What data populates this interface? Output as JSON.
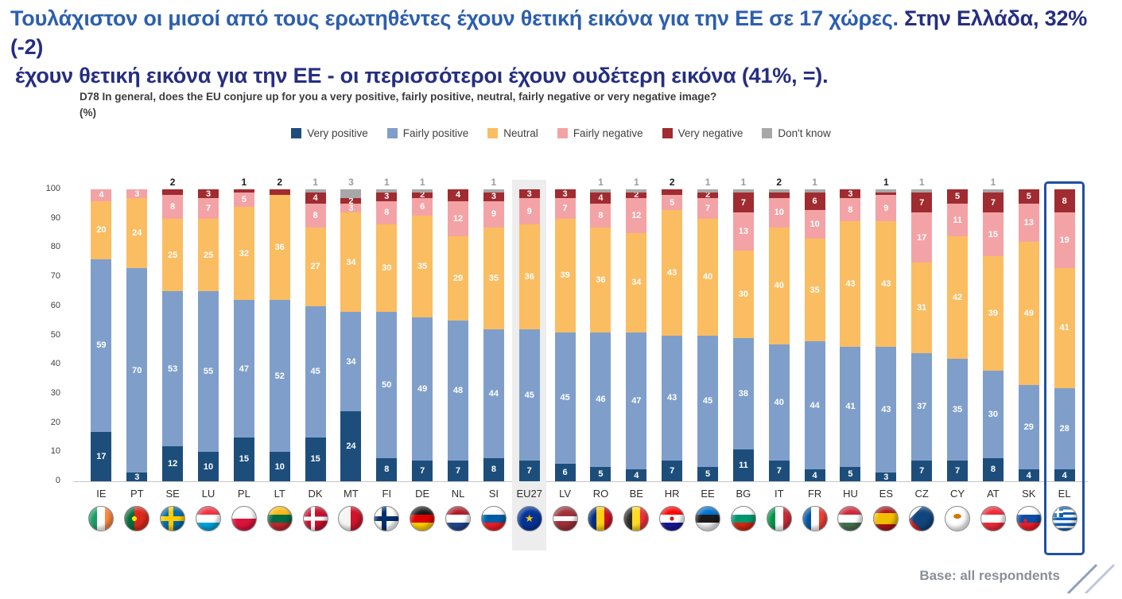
{
  "title": {
    "line1_part1": "Τουλάχιστον οι μισοί από τους ερωτηθέντες έχουν θετική εικόνα για την ΕΕ σε 17 χώρες. ",
    "line1_part2": "Στην Ελλάδα, 32% (-2)",
    "line2": "έχουν θετική εικόνα για την ΕΕ - οι περισσότεροι έχουν ουδέτερη εικόνα (41%, =)."
  },
  "question": {
    "text": "D78 In general, does the EU conjure up for you a very positive, fairly positive, neutral, fairly negative or very negative image?",
    "unit": "(%)"
  },
  "footer": {
    "base_note": "Base: all respondents"
  },
  "chart_data": {
    "type": "bar",
    "stacked": true,
    "ylim": [
      0,
      100
    ],
    "yticks": [
      0,
      10,
      20,
      30,
      40,
      50,
      60,
      70,
      80,
      90,
      100
    ],
    "grid": false,
    "legend_position": "top",
    "label_min_value": 2,
    "highlight_band_code": "EU27",
    "highlight_box_code": "EL",
    "legend": [
      {
        "key": "vp",
        "label": "Very positive",
        "color": "#1d4e7b"
      },
      {
        "key": "fp",
        "label": "Fairly positive",
        "color": "#7f9fca"
      },
      {
        "key": "n",
        "label": "Neutral",
        "color": "#fbbd62"
      },
      {
        "key": "fn",
        "label": "Fairly negative",
        "color": "#f3a3a6"
      },
      {
        "key": "vn",
        "label": "Very negative",
        "color": "#a02b30"
      },
      {
        "key": "dk",
        "label": "Don't know",
        "color": "#a8a8a8"
      }
    ],
    "countries": [
      {
        "code": "IE",
        "vp": 17,
        "fp": 59,
        "n": 20,
        "fn": 4,
        "vn": 0,
        "dk": 0,
        "above": null
      },
      {
        "code": "PT",
        "vp": 3,
        "fp": 70,
        "n": 24,
        "fn": 3,
        "vn": 0,
        "dk": 0,
        "above": null
      },
      {
        "code": "SE",
        "vp": 12,
        "fp": 53,
        "n": 25,
        "fn": 8,
        "vn": 2,
        "dk": 0,
        "above": {
          "series": "vn",
          "value": 2
        }
      },
      {
        "code": "LU",
        "vp": 10,
        "fp": 55,
        "n": 25,
        "fn": 7,
        "vn": 3,
        "dk": 0,
        "above": null
      },
      {
        "code": "PL",
        "vp": 15,
        "fp": 47,
        "n": 32,
        "fn": 5,
        "vn": 1,
        "dk": 0,
        "above": {
          "series": "vn",
          "value": 1
        }
      },
      {
        "code": "LT",
        "vp": 10,
        "fp": 52,
        "n": 36,
        "fn": 0,
        "vn": 2,
        "dk": 0,
        "above": {
          "series": "vn",
          "value": 2
        }
      },
      {
        "code": "DK",
        "vp": 15,
        "fp": 45,
        "n": 27,
        "fn": 8,
        "vn": 4,
        "dk": 1,
        "above": {
          "series": "dk",
          "value": 1
        }
      },
      {
        "code": "MT",
        "vp": 24,
        "fp": 34,
        "n": 34,
        "fn": 3,
        "vn": 2,
        "dk": 3,
        "above": {
          "series": "dk",
          "value": 3
        }
      },
      {
        "code": "FI",
        "vp": 8,
        "fp": 50,
        "n": 30,
        "fn": 8,
        "vn": 3,
        "dk": 1,
        "above": {
          "series": "dk",
          "value": 1
        }
      },
      {
        "code": "DE",
        "vp": 7,
        "fp": 49,
        "n": 35,
        "fn": 6,
        "vn": 2,
        "dk": 1,
        "above": {
          "series": "dk",
          "value": 1
        }
      },
      {
        "code": "NL",
        "vp": 7,
        "fp": 48,
        "n": 29,
        "fn": 12,
        "vn": 4,
        "dk": 0,
        "above": null
      },
      {
        "code": "SI",
        "vp": 8,
        "fp": 44,
        "n": 35,
        "fn": 9,
        "vn": 3,
        "dk": 1,
        "above": {
          "series": "dk",
          "value": 1
        }
      },
      {
        "code": "EU27",
        "vp": 7,
        "fp": 45,
        "n": 36,
        "fn": 9,
        "vn": 3,
        "dk": 0,
        "above": null
      },
      {
        "code": "LV",
        "vp": 6,
        "fp": 45,
        "n": 39,
        "fn": 7,
        "vn": 3,
        "dk": 0,
        "above": null
      },
      {
        "code": "RO",
        "vp": 5,
        "fp": 46,
        "n": 36,
        "fn": 8,
        "vn": 4,
        "dk": 1,
        "above": {
          "series": "dk",
          "value": 1
        }
      },
      {
        "code": "BE",
        "vp": 4,
        "fp": 47,
        "n": 34,
        "fn": 12,
        "vn": 2,
        "dk": 1,
        "above": {
          "series": "dk",
          "value": 1
        }
      },
      {
        "code": "HR",
        "vp": 7,
        "fp": 43,
        "n": 43,
        "fn": 5,
        "vn": 2,
        "dk": 0,
        "above": {
          "series": "vn",
          "value": 2
        }
      },
      {
        "code": "EE",
        "vp": 5,
        "fp": 45,
        "n": 40,
        "fn": 7,
        "vn": 2,
        "dk": 1,
        "above": {
          "series": "dk",
          "value": 1
        }
      },
      {
        "code": "BG",
        "vp": 11,
        "fp": 38,
        "n": 30,
        "fn": 13,
        "vn": 7,
        "dk": 1,
        "above": {
          "series": "dk",
          "value": 1
        }
      },
      {
        "code": "IT",
        "vp": 7,
        "fp": 40,
        "n": 40,
        "fn": 10,
        "vn": 2,
        "dk": 1,
        "above": {
          "series": "vn",
          "value": 2
        }
      },
      {
        "code": "FR",
        "vp": 4,
        "fp": 44,
        "n": 35,
        "fn": 10,
        "vn": 6,
        "dk": 1,
        "above": {
          "series": "dk",
          "value": 1
        }
      },
      {
        "code": "HU",
        "vp": 5,
        "fp": 41,
        "n": 43,
        "fn": 8,
        "vn": 3,
        "dk": 0,
        "above": null
      },
      {
        "code": "ES",
        "vp": 3,
        "fp": 43,
        "n": 43,
        "fn": 9,
        "vn": 1,
        "dk": 1,
        "above": {
          "series": "vn",
          "value": 1
        }
      },
      {
        "code": "CZ",
        "vp": 7,
        "fp": 37,
        "n": 31,
        "fn": 17,
        "vn": 7,
        "dk": 1,
        "above": {
          "series": "dk",
          "value": 1
        }
      },
      {
        "code": "CY",
        "vp": 7,
        "fp": 35,
        "n": 42,
        "fn": 11,
        "vn": 5,
        "dk": 0,
        "above": null
      },
      {
        "code": "AT",
        "vp": 8,
        "fp": 30,
        "n": 39,
        "fn": 15,
        "vn": 7,
        "dk": 1,
        "above": {
          "series": "dk",
          "value": 1
        }
      },
      {
        "code": "SK",
        "vp": 4,
        "fp": 29,
        "n": 49,
        "fn": 13,
        "vn": 5,
        "dk": 0,
        "above": null
      },
      {
        "code": "EL",
        "vp": 4,
        "fp": 28,
        "n": 41,
        "fn": 19,
        "vn": 8,
        "dk": 0,
        "above": null
      }
    ]
  }
}
